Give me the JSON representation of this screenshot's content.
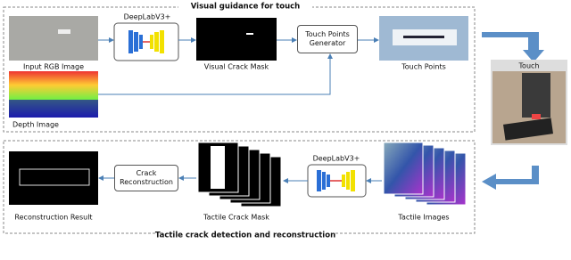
{
  "top_panel": {
    "title": "Visual guidance for touch",
    "input_rgb": "Input RGB Image",
    "network": "DeepLabV3+",
    "crack_mask": "Visual Crack Mask",
    "generator": "Touch Points Generator",
    "touch_points": "Touch Points",
    "depth": "Depth Image"
  },
  "touch": "Touch",
  "bottom_panel": {
    "title": "Tactile crack detection and reconstruction",
    "tactile_images": "Tactile Images",
    "network": "DeepLabV3+",
    "tactile_mask": "Tactile Crack Mask",
    "reconstruction": "Crack Reconstruction",
    "result": "Reconstruction Result"
  }
}
